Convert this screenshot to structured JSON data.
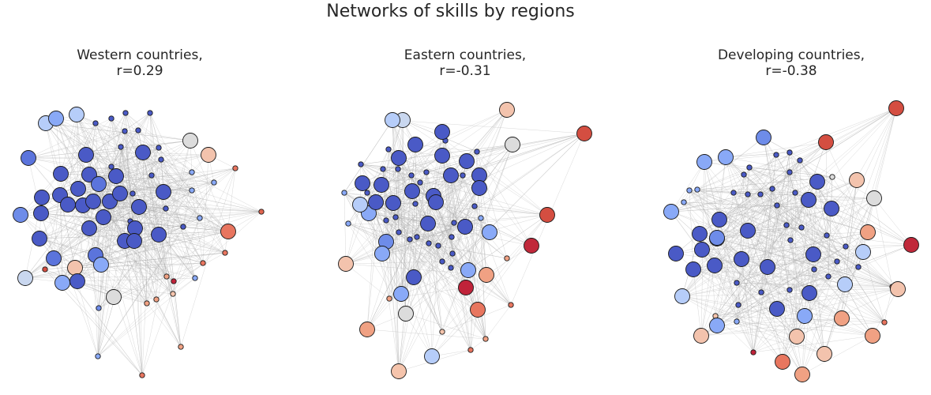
{
  "figure": {
    "title": "Networks of skills by regions",
    "panels": [
      {
        "title_line1": "Western countries,",
        "title_line2": "r=0.29",
        "nodes": [
          {
            "c": "#b6cdf9",
            "s": 3
          },
          {
            "c": "#89a9f7",
            "s": 3
          },
          {
            "c": "#b6cdf9",
            "s": 3
          },
          {
            "c": "#dcdcdc",
            "s": 3
          },
          {
            "c": "#f3c3ad",
            "s": 3
          },
          {
            "c": "#e0654f",
            "s": 1
          },
          {
            "c": "#d44e41",
            "s": 1
          },
          {
            "c": "#5b74dc",
            "s": 3
          },
          {
            "c": "#4a5ac6",
            "s": 3
          },
          {
            "c": "#4a5ac6",
            "s": 3
          },
          {
            "c": "#4a5ac6",
            "s": 3
          },
          {
            "c": "#4a5ac6",
            "s": 3
          },
          {
            "c": "#4a5ac6",
            "s": 3
          },
          {
            "c": "#4a5ac6",
            "s": 3
          },
          {
            "c": "#4a5ac6",
            "s": 3
          },
          {
            "c": "#4a5ac6",
            "s": 3
          },
          {
            "c": "#5b74dc",
            "s": 3
          },
          {
            "c": "#4a5ac6",
            "s": 3
          },
          {
            "c": "#4a5ac6",
            "s": 3
          },
          {
            "c": "#4a5ac6",
            "s": 3
          },
          {
            "c": "#4a5ac6",
            "s": 3
          },
          {
            "c": "#4a5ac6",
            "s": 3
          },
          {
            "c": "#4a5ac6",
            "s": 3
          },
          {
            "c": "#4a5ac6",
            "s": 3
          },
          {
            "c": "#4a5ac6",
            "s": 3
          },
          {
            "c": "#4a5ac6",
            "s": 3
          },
          {
            "c": "#4a5ac6",
            "s": 3
          },
          {
            "c": "#4a5ac6",
            "s": 3
          },
          {
            "c": "#4a5ac6",
            "s": 3
          },
          {
            "c": "#4a5ac6",
            "s": 3
          },
          {
            "c": "#4a5ac6",
            "s": 3
          },
          {
            "c": "#4a5ac6",
            "s": 3
          },
          {
            "c": "#5b74dc",
            "s": 3
          },
          {
            "c": "#5b74dc",
            "s": 3
          },
          {
            "c": "#89a9f7",
            "s": 3
          },
          {
            "c": "#f3c3ad",
            "s": 3
          },
          {
            "c": "#c9d7ef",
            "s": 3
          },
          {
            "c": "#dcdcdc",
            "s": 3
          },
          {
            "c": "#e8755f",
            "s": 3
          },
          {
            "c": "#6e8ce9",
            "s": 3
          },
          {
            "c": "#4a5ac6",
            "s": 3
          },
          {
            "c": "#89a9f7",
            "s": 3
          },
          {
            "c": "#4a5ac6",
            "s": 1
          },
          {
            "c": "#4a5ac6",
            "s": 1
          },
          {
            "c": "#4a5ac6",
            "s": 1
          },
          {
            "c": "#4a5ac6",
            "s": 1
          },
          {
            "c": "#4a5ac6",
            "s": 1
          },
          {
            "c": "#4a5ac6",
            "s": 1
          },
          {
            "c": "#4a5ac6",
            "s": 1
          },
          {
            "c": "#4a5ac6",
            "s": 1
          },
          {
            "c": "#4a5ac6",
            "s": 1
          },
          {
            "c": "#89a9f7",
            "s": 1
          },
          {
            "c": "#89a9f7",
            "s": 1
          },
          {
            "c": "#89a9f7",
            "s": 1
          },
          {
            "c": "#89a9f7",
            "s": 1
          },
          {
            "c": "#89a9f7",
            "s": 1
          },
          {
            "c": "#f0a183",
            "s": 1
          },
          {
            "c": "#e8755f",
            "s": 1
          },
          {
            "c": "#e0654f",
            "s": 1
          },
          {
            "c": "#e8755f",
            "s": 1
          },
          {
            "c": "#e8755f",
            "s": 1
          },
          {
            "c": "#c0233a",
            "s": 1
          },
          {
            "c": "#f0a183",
            "s": 1
          },
          {
            "c": "#f0a183",
            "s": 1
          },
          {
            "c": "#e8755f",
            "s": 1
          },
          {
            "c": "#6e8ce9",
            "s": 1
          },
          {
            "c": "#89a9f7",
            "s": 1
          },
          {
            "c": "#f0a183",
            "s": 1
          },
          {
            "c": "#f5c4ac",
            "s": 1
          },
          {
            "c": "#4a5ac6",
            "s": 1
          },
          {
            "c": "#4a5ac6",
            "s": 1
          },
          {
            "c": "#4a5ac6",
            "s": 1
          },
          {
            "c": "#4a5ac6",
            "s": 1
          },
          {
            "c": "#4a5ac6",
            "s": 1
          },
          {
            "c": "#4a5ac6",
            "s": 1
          }
        ]
      },
      {
        "title_line1": "Eastern countries,",
        "title_line2": "r=-0.31",
        "nodes": [
          {
            "c": "#f3c3ad",
            "s": 3
          },
          {
            "c": "#d44e41",
            "s": 3
          },
          {
            "c": "#dcdcdc",
            "s": 3
          },
          {
            "c": "#d44e41",
            "s": 3
          },
          {
            "c": "#c0283a",
            "s": 3
          },
          {
            "c": "#c0233a",
            "s": 3
          },
          {
            "c": "#f3c3ad",
            "s": 3
          },
          {
            "c": "#f0a183",
            "s": 3
          },
          {
            "c": "#e8765f",
            "s": 3
          },
          {
            "c": "#f0a183",
            "s": 3
          },
          {
            "c": "#f5c4ac",
            "s": 3
          },
          {
            "c": "#b6cdf9",
            "s": 3
          },
          {
            "c": "#dcdcdc",
            "s": 3
          },
          {
            "c": "#89a9f7",
            "s": 3
          },
          {
            "c": "#89a9f7",
            "s": 3
          },
          {
            "c": "#89a9f7",
            "s": 3
          },
          {
            "c": "#89a9f7",
            "s": 3
          },
          {
            "c": "#b6cdf9",
            "s": 3
          },
          {
            "c": "#c9d7ef",
            "s": 3
          },
          {
            "c": "#b6cdf9",
            "s": 3
          },
          {
            "c": "#4a5ac6",
            "s": 3
          },
          {
            "c": "#4a5ac6",
            "s": 3
          },
          {
            "c": "#4a5ac6",
            "s": 3
          },
          {
            "c": "#4a5ac6",
            "s": 3
          },
          {
            "c": "#4a5ac6",
            "s": 3
          },
          {
            "c": "#4a5ac6",
            "s": 3
          },
          {
            "c": "#4a5ac6",
            "s": 3
          },
          {
            "c": "#4a5ac6",
            "s": 3
          },
          {
            "c": "#4a5ac6",
            "s": 3
          },
          {
            "c": "#4a5ac6",
            "s": 3
          },
          {
            "c": "#4a5ac6",
            "s": 3
          },
          {
            "c": "#4a5ac6",
            "s": 3
          },
          {
            "c": "#4a5ac6",
            "s": 3
          },
          {
            "c": "#4a5ac6",
            "s": 3
          },
          {
            "c": "#4a5ac6",
            "s": 3
          },
          {
            "c": "#4a5ac6",
            "s": 3
          },
          {
            "c": "#4a5ac6",
            "s": 3
          },
          {
            "c": "#6e8ce9",
            "s": 3
          },
          {
            "c": "#89a9f7",
            "s": 3
          },
          {
            "c": "#4a5ac6",
            "s": 3
          },
          {
            "c": "#4a5ac6",
            "s": 1
          },
          {
            "c": "#4a5ac6",
            "s": 1
          },
          {
            "c": "#4a5ac6",
            "s": 1
          },
          {
            "c": "#4a5ac6",
            "s": 1
          },
          {
            "c": "#4a5ac6",
            "s": 1
          },
          {
            "c": "#4a5ac6",
            "s": 1
          },
          {
            "c": "#4a5ac6",
            "s": 1
          },
          {
            "c": "#4a5ac6",
            "s": 1
          },
          {
            "c": "#4a5ac6",
            "s": 1
          },
          {
            "c": "#4a5ac6",
            "s": 1
          },
          {
            "c": "#4a5ac6",
            "s": 1
          },
          {
            "c": "#4a5ac6",
            "s": 1
          },
          {
            "c": "#4a5ac6",
            "s": 1
          },
          {
            "c": "#4a5ac6",
            "s": 1
          },
          {
            "c": "#89a9f7",
            "s": 1
          },
          {
            "c": "#89a9f7",
            "s": 1
          },
          {
            "c": "#89a9f7",
            "s": 1
          },
          {
            "c": "#f0a183",
            "s": 1
          },
          {
            "c": "#e8755f",
            "s": 1
          },
          {
            "c": "#f0a183",
            "s": 1
          },
          {
            "c": "#f5c4ac",
            "s": 1
          },
          {
            "c": "#e8755f",
            "s": 1
          },
          {
            "c": "#f0a183",
            "s": 1
          },
          {
            "c": "#4a5ac6",
            "s": 1
          },
          {
            "c": "#4a5ac6",
            "s": 1
          },
          {
            "c": "#4a5ac6",
            "s": 1
          },
          {
            "c": "#4a5ac6",
            "s": 1
          },
          {
            "c": "#4a5ac6",
            "s": 1
          },
          {
            "c": "#4a5ac6",
            "s": 1
          },
          {
            "c": "#4a5ac6",
            "s": 1
          },
          {
            "c": "#4a5ac6",
            "s": 1
          },
          {
            "c": "#4a5ac6",
            "s": 1
          },
          {
            "c": "#4a5ac6",
            "s": 1
          },
          {
            "c": "#4a5ac6",
            "s": 1
          }
        ]
      },
      {
        "title_line1": "Developing countries,",
        "title_line2": "r=-0.38",
        "nodes": [
          {
            "c": "#d44e41",
            "s": 3
          },
          {
            "c": "#d44e41",
            "s": 3
          },
          {
            "c": "#c0283a",
            "s": 3
          },
          {
            "c": "#f3c3ad",
            "s": 3
          },
          {
            "c": "#dcdcdc",
            "s": 3
          },
          {
            "c": "#f0a183",
            "s": 3
          },
          {
            "c": "#f3c3ad",
            "s": 3
          },
          {
            "c": "#f3c3ad",
            "s": 3
          },
          {
            "c": "#f0a183",
            "s": 3
          },
          {
            "c": "#f3c3ad",
            "s": 3
          },
          {
            "c": "#f0a183",
            "s": 3
          },
          {
            "c": "#f0a183",
            "s": 3
          },
          {
            "c": "#f3c3ad",
            "s": 3
          },
          {
            "c": "#e8765f",
            "s": 3
          },
          {
            "c": "#b6cdf9",
            "s": 3
          },
          {
            "c": "#b6cdf9",
            "s": 3
          },
          {
            "c": "#89a9f7",
            "s": 3
          },
          {
            "c": "#89a9f7",
            "s": 3
          },
          {
            "c": "#89a9f7",
            "s": 3
          },
          {
            "c": "#b6cdf9",
            "s": 3
          },
          {
            "c": "#89a9f7",
            "s": 3
          },
          {
            "c": "#6e8ce9",
            "s": 3
          },
          {
            "c": "#89a9f7",
            "s": 3
          },
          {
            "c": "#4a5ac6",
            "s": 3
          },
          {
            "c": "#4a5ac6",
            "s": 3
          },
          {
            "c": "#4a5ac6",
            "s": 3
          },
          {
            "c": "#4a5ac6",
            "s": 3
          },
          {
            "c": "#4a5ac6",
            "s": 3
          },
          {
            "c": "#4a5ac6",
            "s": 3
          },
          {
            "c": "#4a5ac6",
            "s": 3
          },
          {
            "c": "#4a5ac6",
            "s": 3
          },
          {
            "c": "#4a5ac6",
            "s": 3
          },
          {
            "c": "#4a5ac6",
            "s": 3
          },
          {
            "c": "#4a5ac6",
            "s": 3
          },
          {
            "c": "#4a5ac6",
            "s": 3
          },
          {
            "c": "#4a5ac6",
            "s": 3
          },
          {
            "c": "#4a5ac6",
            "s": 3
          },
          {
            "c": "#4a5ac6",
            "s": 3
          },
          {
            "c": "#4a5ac6",
            "s": 3
          },
          {
            "c": "#6e8ce9",
            "s": 3
          },
          {
            "c": "#4a5ac6",
            "s": 1
          },
          {
            "c": "#4a5ac6",
            "s": 1
          },
          {
            "c": "#4a5ac6",
            "s": 1
          },
          {
            "c": "#4a5ac6",
            "s": 1
          },
          {
            "c": "#4a5ac6",
            "s": 1
          },
          {
            "c": "#4a5ac6",
            "s": 1
          },
          {
            "c": "#4a5ac6",
            "s": 1
          },
          {
            "c": "#4a5ac6",
            "s": 1
          },
          {
            "c": "#4a5ac6",
            "s": 1
          },
          {
            "c": "#4a5ac6",
            "s": 1
          },
          {
            "c": "#4a5ac6",
            "s": 1
          },
          {
            "c": "#4a5ac6",
            "s": 1
          },
          {
            "c": "#4a5ac6",
            "s": 1
          },
          {
            "c": "#4a5ac6",
            "s": 1
          },
          {
            "c": "#89a9f7",
            "s": 1
          },
          {
            "c": "#89a9f7",
            "s": 1
          },
          {
            "c": "#89a9f7",
            "s": 1
          },
          {
            "c": "#89a9f7",
            "s": 1
          },
          {
            "c": "#e8755f",
            "s": 1
          },
          {
            "c": "#e8755f",
            "s": 1
          },
          {
            "c": "#f5c4ac",
            "s": 1
          },
          {
            "c": "#c0233a",
            "s": 1
          },
          {
            "c": "#dcdcdc",
            "s": 1
          },
          {
            "c": "#4a5ac6",
            "s": 1
          },
          {
            "c": "#4a5ac6",
            "s": 1
          },
          {
            "c": "#4a5ac6",
            "s": 1
          },
          {
            "c": "#4a5ac6",
            "s": 1
          },
          {
            "c": "#4a5ac6",
            "s": 1
          },
          {
            "c": "#4a5ac6",
            "s": 1
          },
          {
            "c": "#4a5ac6",
            "s": 1
          },
          {
            "c": "#4a5ac6",
            "s": 1
          },
          {
            "c": "#4a5ac6",
            "s": 1
          },
          {
            "c": "#4a5ac6",
            "s": 1
          },
          {
            "c": "#4a5ac6",
            "s": 1
          }
        ]
      }
    ]
  }
}
